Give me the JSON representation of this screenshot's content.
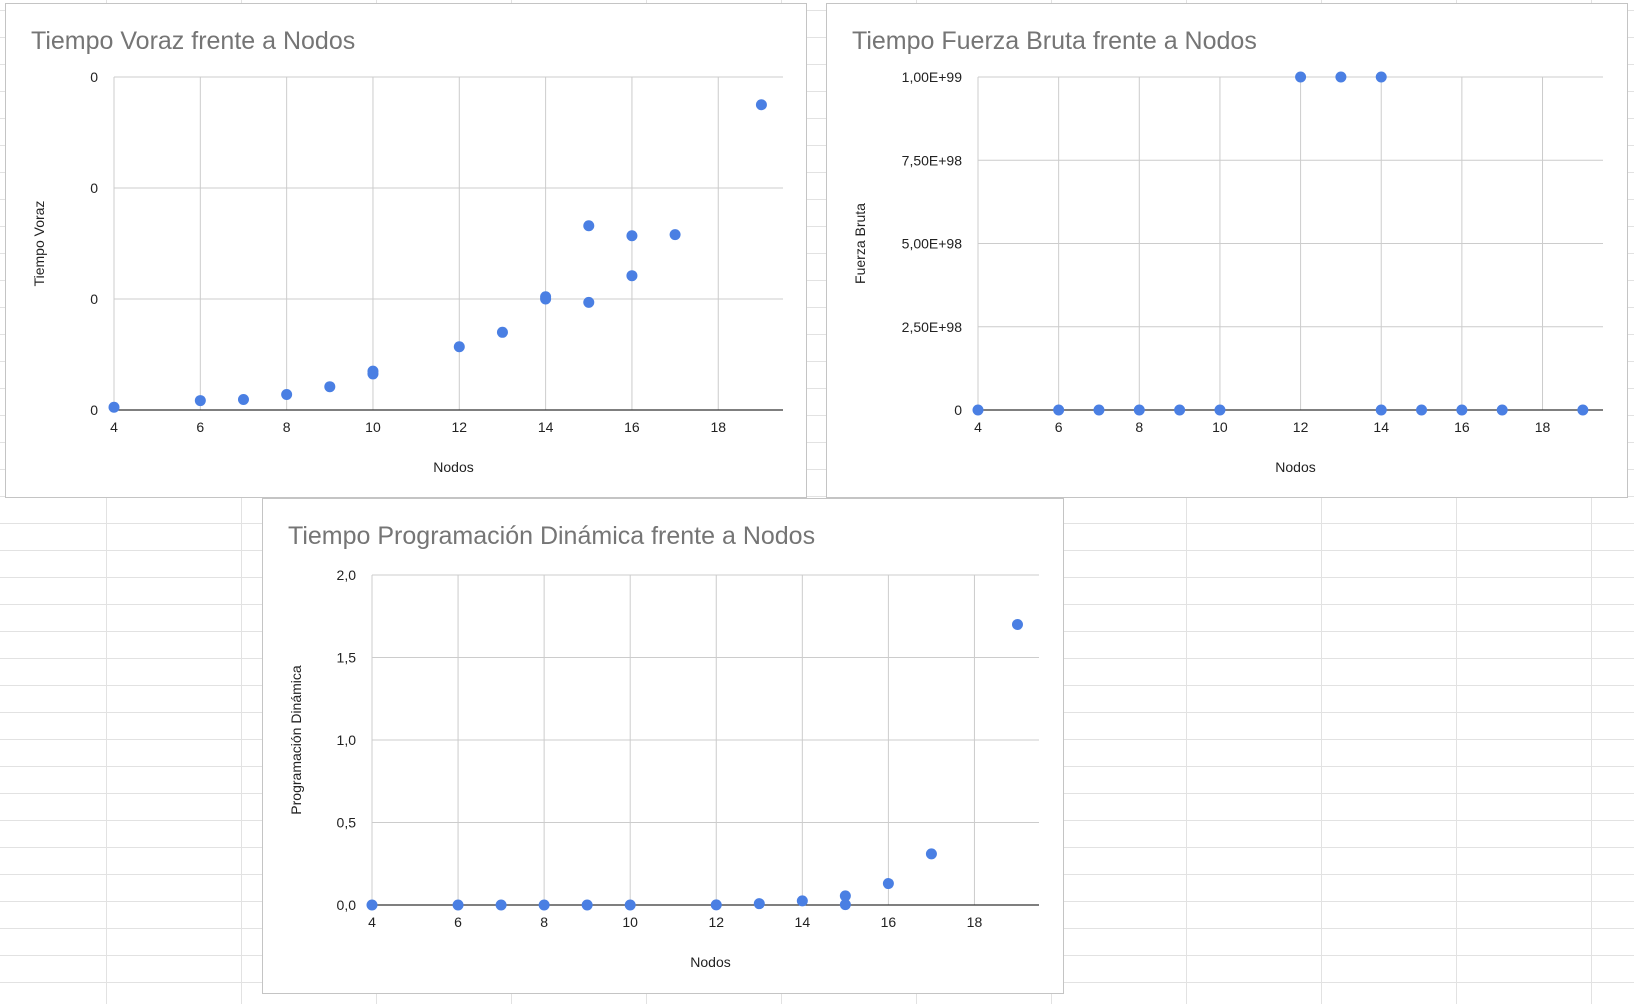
{
  "colors": {
    "point": "#4a7fe3",
    "grid": "#cccccc",
    "title": "#757575"
  },
  "chart_data": [
    {
      "type": "scatter",
      "title": "Tiempo Voraz frente a Nodos",
      "xlabel": "Nodos",
      "ylabel": "Tiempo Voraz",
      "xlim": [
        4,
        19.5
      ],
      "ylim": [
        0,
        0.0003
      ],
      "x_ticks": [
        "4",
        "6",
        "8",
        "10",
        "12",
        "14",
        "16",
        "18"
      ],
      "y_ticks": [
        "0",
        "0",
        "0",
        "0"
      ],
      "grid": true,
      "series": [
        {
          "x": [
            4,
            6,
            7,
            8,
            9,
            10,
            10,
            12,
            13,
            14,
            14,
            15,
            15,
            16,
            16,
            17,
            19
          ],
          "y": [
            2.5e-06,
            8.5e-06,
            9.5e-06,
            1.4e-05,
            2.1e-05,
            3.25e-05,
            3.5e-05,
            5.7e-05,
            7e-05,
            0.0001,
            0.000102,
            9.7e-05,
            0.000166,
            0.000157,
            0.000121,
            0.000158,
            0.000275
          ]
        }
      ]
    },
    {
      "type": "scatter",
      "title": "Tiempo Fuerza Bruta frente a Nodos",
      "xlabel": "Nodos",
      "ylabel": "Fuerza Bruta",
      "xlim": [
        4,
        19.5
      ],
      "ylim": [
        0,
        1e+99
      ],
      "x_ticks": [
        "4",
        "6",
        "8",
        "10",
        "12",
        "14",
        "16",
        "18"
      ],
      "y_ticks": [
        "0",
        "2,50E+98",
        "5,00E+98",
        "7,50E+98",
        "1,00E+99"
      ],
      "grid": true,
      "series": [
        {
          "x": [
            4,
            6,
            7,
            8,
            9,
            10,
            12,
            13,
            14,
            14,
            15,
            16,
            17,
            19
          ],
          "y": [
            0,
            0,
            0,
            0,
            0,
            0,
            1e+99,
            1e+99,
            1e+99,
            0,
            0,
            0,
            0,
            0
          ]
        }
      ]
    },
    {
      "type": "scatter",
      "title": "Tiempo Programación Dinámica frente a Nodos",
      "xlabel": "Nodos",
      "ylabel": "Programación Dinámica",
      "xlim": [
        4,
        19.5
      ],
      "ylim": [
        0,
        2.0
      ],
      "x_ticks": [
        "4",
        "6",
        "8",
        "10",
        "12",
        "14",
        "16",
        "18"
      ],
      "y_ticks": [
        "0,0",
        "0,5",
        "1,0",
        "1,5",
        "2,0"
      ],
      "grid": true,
      "series": [
        {
          "x": [
            4,
            6,
            7,
            8,
            9,
            10,
            12,
            13,
            14,
            15,
            15,
            16,
            17,
            19
          ],
          "y": [
            0,
            0,
            0,
            0,
            0,
            0,
            0.001,
            0.008,
            0.025,
            0.002,
            0.055,
            0.13,
            0.31,
            1.7
          ]
        }
      ]
    }
  ]
}
